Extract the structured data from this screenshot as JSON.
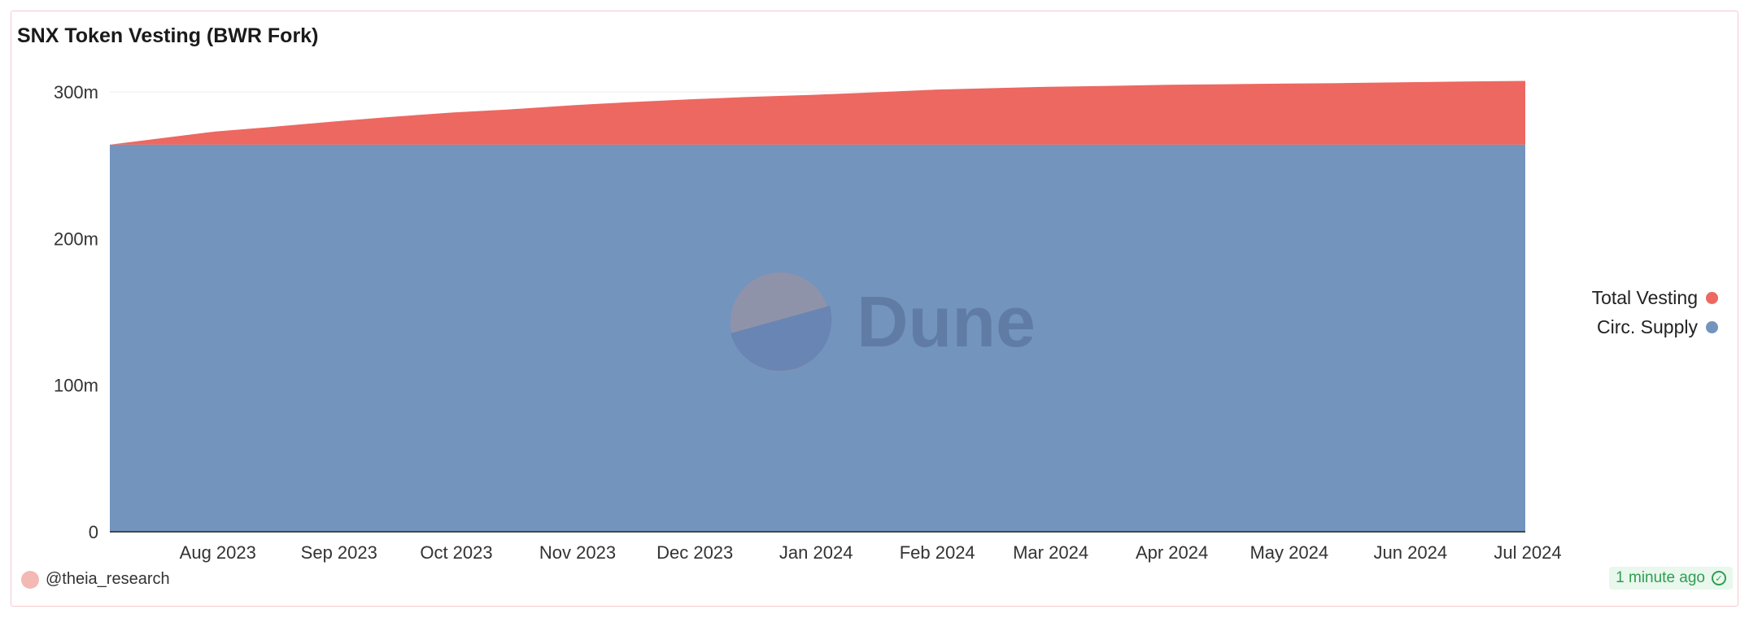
{
  "title": "SNX Token Vesting (BWR Fork)",
  "author": "@theia_research",
  "updated": "1 minute ago",
  "watermark": "Dune",
  "colors": {
    "total_vesting": "#ec6861",
    "circ_supply": "#7394bd"
  },
  "chart_data": {
    "type": "area",
    "stacked": true,
    "title": "SNX Token Vesting (BWR Fork)",
    "x": [
      "2023-07-05",
      "2023-07-20",
      "2023-08-01",
      "2023-08-15",
      "2023-09-01",
      "2023-09-15",
      "2023-10-01",
      "2023-10-15",
      "2023-11-01",
      "2023-11-15",
      "2023-12-01",
      "2023-12-15",
      "2024-01-01",
      "2024-01-15",
      "2024-02-01",
      "2024-02-15",
      "2024-03-01",
      "2024-03-15",
      "2024-04-01",
      "2024-04-15",
      "2024-05-01",
      "2024-05-15",
      "2024-06-01",
      "2024-06-15",
      "2024-07-01"
    ],
    "x_ticks": [
      "Aug 2023",
      "Sep 2023",
      "Oct 2023",
      "Nov 2023",
      "Dec 2023",
      "Jan 2024",
      "Feb 2024",
      "Mar 2024",
      "Apr 2024",
      "May 2024",
      "Jun 2024",
      "Jul 2024"
    ],
    "y_ticks": [
      "0",
      "100m",
      "200m",
      "300m"
    ],
    "ylim": [
      0,
      300000000
    ],
    "series": [
      {
        "name": "Circ. Supply",
        "values": [
          264000000,
          264000000,
          264000000,
          264000000,
          264000000,
          264000000,
          264000000,
          264000000,
          264000000,
          264000000,
          264000000,
          264000000,
          264000000,
          264000000,
          264000000,
          264000000,
          264000000,
          264000000,
          264000000,
          264000000,
          264000000,
          264000000,
          264000000,
          264000000,
          264000000
        ]
      },
      {
        "name": "Total Vesting",
        "values": [
          0,
          5000000,
          9000000,
          12000000,
          16000000,
          19000000,
          22000000,
          24000000,
          27000000,
          29000000,
          31000000,
          32500000,
          34000000,
          35500000,
          37500000,
          38500000,
          39500000,
          40000000,
          40800000,
          41200000,
          41700000,
          42000000,
          42600000,
          43100000,
          43500000
        ]
      }
    ],
    "legend": [
      "Total Vesting",
      "Circ. Supply"
    ],
    "legend_position": "right",
    "grid": true
  }
}
